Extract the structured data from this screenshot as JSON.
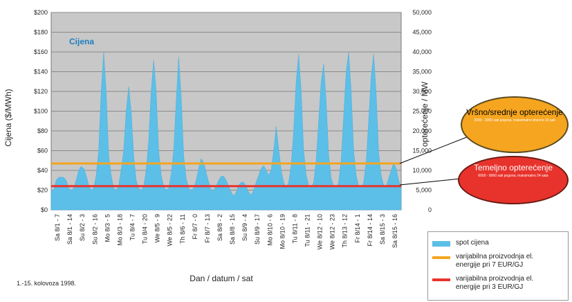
{
  "chart_data": {
    "type": "area",
    "title": "Cijena",
    "xlabel": "Dan / datum / sat",
    "ylabel": "Cijena ($/MWh)",
    "y2label": "opterećenje / MW",
    "ylim": [
      0,
      200
    ],
    "y2lim": [
      0,
      50000
    ],
    "y_ticks": [
      "$0",
      "$20",
      "$40",
      "$60",
      "$80",
      "$100",
      "$120",
      "$140",
      "$160",
      "$180",
      "$200"
    ],
    "y2_ticks": [
      "0",
      "5,000",
      "10,000",
      "15,000",
      "20,000",
      "25,000",
      "30,000",
      "35,000",
      "40,000",
      "45,000",
      "50,000"
    ],
    "grid": true,
    "x_labels": [
      "Sa 8/1 - 7",
      "Sa 8/1 - 14",
      "Su 8/2 - 3",
      "Su 8/2 - 16",
      "Mo 8/3 - 5",
      "Mo 8/3 - 18",
      "Tu 8/4 - 7",
      "Tu 8/4 - 20",
      "We 8/5 - 9",
      "We 8/5 - 22",
      "Th 8/6 - 11",
      "Fr 8/7 - 0",
      "Fr 8/7 - 13",
      "Sa 8/8 - 2",
      "Sa 8/8 - 15",
      "Su 8/9 - 4",
      "Su 8/9 - 17",
      "Mo 8/10 - 6",
      "Mo 8/10 - 19",
      "Tu 8/11 - 8",
      "Tu 8/11 - 21",
      "We 8/12 - 10",
      "We 8/12 - 23",
      "Th 8/13 - 12",
      "Fr 8/14 - 1",
      "Fr 8/14 - 14",
      "Sa 8/15 - 3",
      "Sa 8/15 - 16"
    ],
    "series": [
      {
        "name": "spot cijena",
        "color": "#5bbfe8",
        "type": "area",
        "values": [
          20,
          20,
          30,
          33,
          33,
          33,
          30,
          22,
          20,
          22,
          30,
          40,
          44,
          42,
          35,
          25,
          20,
          22,
          35,
          60,
          120,
          160,
          120,
          55,
          35,
          22,
          20,
          25,
          40,
          60,
          100,
          125,
          100,
          55,
          30,
          22,
          20,
          24,
          40,
          70,
          120,
          152,
          120,
          60,
          35,
          24,
          20,
          22,
          36,
          60,
          110,
          155,
          115,
          55,
          32,
          22,
          20,
          22,
          30,
          42,
          52,
          48,
          38,
          28,
          20,
          20,
          24,
          30,
          34,
          34,
          30,
          24,
          18,
          14,
          18,
          25,
          28,
          28,
          24,
          18,
          15,
          20,
          28,
          35,
          42,
          45,
          40,
          35,
          40,
          60,
          85,
          62,
          40,
          28,
          22,
          28,
          45,
          80,
          130,
          158,
          120,
          60,
          35,
          25,
          22,
          28,
          50,
          90,
          130,
          148,
          110,
          55,
          32,
          24,
          22,
          28,
          50,
          95,
          140,
          160,
          120,
          60,
          35,
          24,
          22,
          28,
          48,
          90,
          135,
          158,
          118,
          58,
          35,
          25,
          24,
          32,
          40,
          48,
          42,
          30,
          22
        ]
      },
      {
        "name": "varijabilna proizvodnja el. energije pri 7 EUR/GJ",
        "color": "#f5a51f",
        "type": "line",
        "value": 47
      },
      {
        "name": "varijabilna proizvodnja el. energije pri 3 EUR/GJ",
        "color": "#e8332c",
        "type": "line",
        "value": 24
      }
    ]
  },
  "legend": {
    "items": [
      {
        "label": "spot cijena",
        "color": "#5bbfe8"
      },
      {
        "label": "varijabilna proizvodnja el. energije pri 7 EUR/GJ",
        "color": "#f5a51f"
      },
      {
        "label": "varijabilna proizvodnja el. energije pri 3 EUR/GJ",
        "color": "#e8332c"
      }
    ]
  },
  "callouts": {
    "peak": {
      "title": "Vršno/srednje opterećenje",
      "sub": "2000 - 3000 sati pogona; maksimalno dnevno 10 sati",
      "color": "#f5a51f"
    },
    "base": {
      "title": "Temeljno opterećenje",
      "sub": "6000 - 8000 sati pogona; maksimalno 24 sata",
      "color": "#e8332c"
    }
  },
  "footnote": "1.-15. kolovoza 1998."
}
